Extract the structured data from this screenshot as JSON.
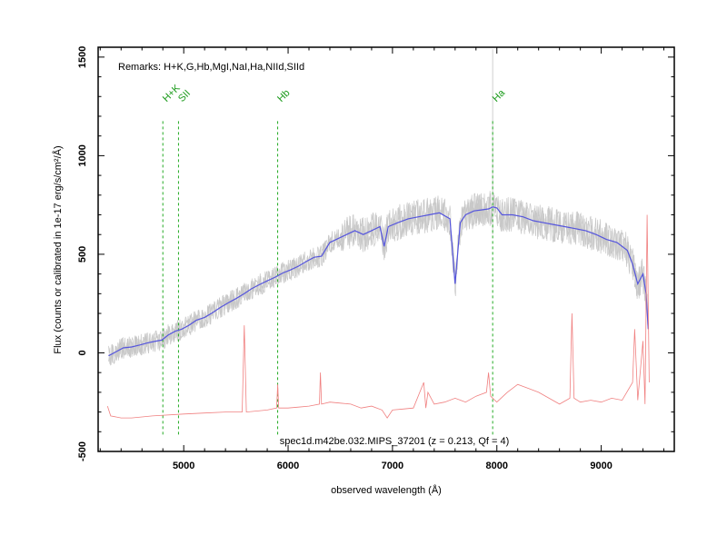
{
  "chart_data": {
    "type": "line",
    "remarks": "Remarks: H+K,G,Hb,MgI,NaI,Ha,NIId,SIId",
    "annotation": "spec1d.m42be.032.MIPS_37201 (z = 0.213, Qf = 4)",
    "xlabel": "observed wavelength (Å)",
    "ylabel": "Flux (counts or calibrated in 1e-17 erg/s/cm²/Å)",
    "xlim": [
      4180,
      9700
    ],
    "ylim": [
      -500,
      1550
    ],
    "xticks": [
      5000,
      6000,
      7000,
      8000,
      9000
    ],
    "yticks": [
      -500,
      0,
      500,
      1000,
      1500
    ],
    "emission_lines": [
      {
        "label": "H+K",
        "x": 4800
      },
      {
        "label": "SII",
        "x": 4950
      },
      {
        "label": "Hb",
        "x": 5900
      },
      {
        "label": "Ha",
        "x": 7960
      }
    ],
    "series": [
      {
        "color": "#5555dd",
        "x": [
          4280,
          4350,
          4420,
          4500,
          4580,
          4650,
          4720,
          4790,
          4850,
          4920,
          4980,
          5050,
          5120,
          5200,
          5280,
          5350,
          5430,
          5500,
          5580,
          5650,
          5720,
          5800,
          5880,
          5950,
          6020,
          6100,
          6180,
          6250,
          6320,
          6400,
          6480,
          6560,
          6640,
          6720,
          6800,
          6880,
          6920,
          6960,
          7050,
          7150,
          7250,
          7350,
          7450,
          7550,
          7600,
          7650,
          7700,
          7780,
          7850,
          7920,
          7960,
          8000,
          8050,
          8150,
          8250,
          8350,
          8450,
          8550,
          8650,
          8750,
          8850,
          8950,
          9050,
          9150,
          9250,
          9300,
          9350,
          9400,
          9430,
          9450
        ],
        "y": [
          -15,
          5,
          25,
          30,
          40,
          50,
          58,
          65,
          90,
          110,
          120,
          140,
          165,
          180,
          205,
          230,
          255,
          275,
          300,
          325,
          345,
          365,
          385,
          405,
          420,
          440,
          465,
          485,
          490,
          560,
          580,
          600,
          620,
          600,
          620,
          640,
          540,
          640,
          660,
          680,
          690,
          700,
          710,
          680,
          350,
          660,
          700,
          720,
          725,
          730,
          740,
          735,
          700,
          700,
          690,
          670,
          660,
          650,
          640,
          630,
          620,
          600,
          575,
          560,
          520,
          450,
          350,
          400,
          300,
          120
        ]
      },
      {
        "color": "#f08080",
        "x": [
          4270,
          4300,
          4400,
          4500,
          4700,
          5000,
          5200,
          5400,
          5560,
          5580,
          5600,
          5800,
          5890,
          5900,
          5910,
          6000,
          6100,
          6200,
          6300,
          6310,
          6320,
          6400,
          6500,
          6600,
          6700,
          6800,
          6900,
          6950,
          7000,
          7100,
          7200,
          7300,
          7320,
          7340,
          7400,
          7500,
          7600,
          7700,
          7800,
          7900,
          7920,
          7940,
          8000,
          8100,
          8200,
          8300,
          8400,
          8500,
          8600,
          8700,
          8720,
          8740,
          8800,
          8900,
          9000,
          9100,
          9200,
          9300,
          9320,
          9350,
          9400,
          9420,
          9440,
          9460
        ],
        "y": [
          -270,
          -320,
          -330,
          -330,
          -320,
          -310,
          -305,
          -300,
          -300,
          140,
          -300,
          -290,
          -280,
          -160,
          -280,
          -280,
          -275,
          -270,
          -260,
          -100,
          -260,
          -250,
          -255,
          -260,
          -280,
          -270,
          -290,
          -330,
          -290,
          -285,
          -280,
          -150,
          -280,
          -200,
          -260,
          -250,
          -230,
          -250,
          -220,
          -200,
          -100,
          -220,
          -250,
          -200,
          -160,
          -180,
          -200,
          -230,
          -260,
          -230,
          200,
          -230,
          -250,
          -240,
          -250,
          -230,
          -240,
          -150,
          120,
          -240,
          60,
          -260,
          700,
          -150
        ]
      }
    ]
  }
}
